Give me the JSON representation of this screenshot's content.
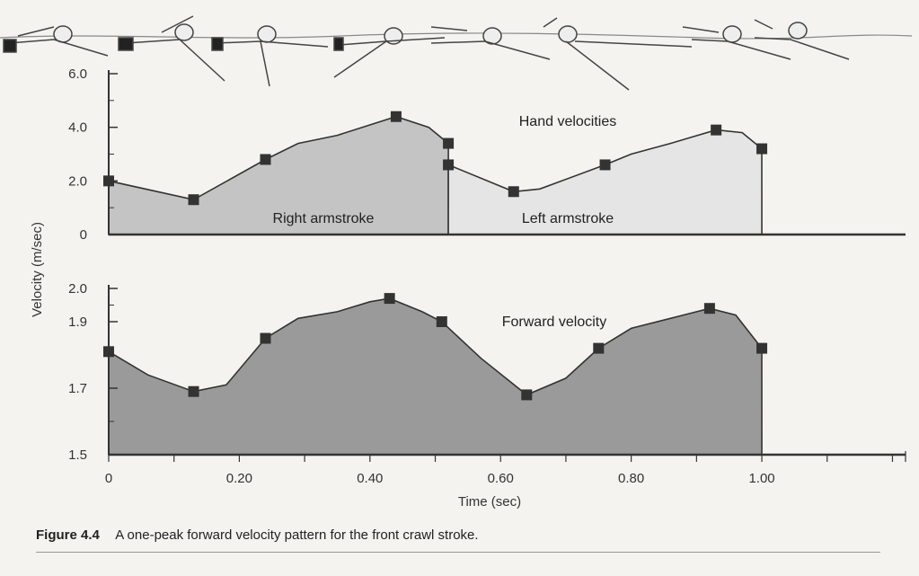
{
  "colors": {
    "right_stroke_fill": "#c4c4c4",
    "left_stroke_fill": "#e5e5e5",
    "forward_fill": "#9a9a9a",
    "marker": "#333333",
    "axis": "#333333"
  },
  "caption": {
    "label": "Figure 4.4",
    "text": "A one-peak forward velocity pattern for the front crawl stroke."
  },
  "chart_data": {
    "type": "area",
    "xlabel": "Time (sec)",
    "ylabel": "Velocity (m/sec)",
    "xlim": [
      0,
      1.22
    ],
    "x_ticks": [
      "0",
      "0.20",
      "0.40",
      "0.60",
      "0.80",
      "1.00"
    ],
    "x_tick_values": [
      0,
      0.2,
      0.4,
      0.6,
      0.8,
      1.0
    ],
    "grid": false,
    "panels": [
      {
        "name": "hand",
        "ylim": [
          0,
          6.0
        ],
        "y_ticks": [
          "0",
          "2.0",
          "4.0",
          "6.0"
        ],
        "y_tick_values": [
          0,
          2.0,
          4.0,
          6.0
        ],
        "label": "Hand velocities",
        "series": [
          {
            "label": "Right armstroke",
            "x": [
              0,
              0.13,
              0.24,
              0.29,
              0.35,
              0.44,
              0.49,
              0.52
            ],
            "y": [
              2.0,
              1.3,
              2.8,
              3.4,
              3.7,
              4.4,
              4.0,
              3.4
            ],
            "markers_x": [
              0,
              0.13,
              0.24,
              0.44,
              0.52
            ],
            "markers_y": [
              2.0,
              1.3,
              2.8,
              4.4,
              3.4
            ]
          },
          {
            "label": "Left armstroke",
            "x": [
              0.52,
              0.62,
              0.66,
              0.76,
              0.8,
              0.86,
              0.93,
              0.97,
              1.0
            ],
            "y": [
              2.6,
              1.6,
              1.7,
              2.6,
              3.0,
              3.4,
              3.9,
              3.8,
              3.2
            ],
            "markers_x": [
              0.52,
              0.62,
              0.76,
              0.93,
              1.0
            ],
            "markers_y": [
              2.6,
              1.6,
              2.6,
              3.9,
              3.2
            ]
          }
        ]
      },
      {
        "name": "forward",
        "ylim": [
          1.5,
          2.0
        ],
        "y_ticks": [
          "1.5",
          "1.7",
          "1.9",
          "2.0"
        ],
        "y_tick_values": [
          1.5,
          1.7,
          1.9,
          2.0
        ],
        "label": "Forward velocity",
        "series": [
          {
            "label": "Forward velocity",
            "x": [
              0,
              0.06,
              0.13,
              0.18,
              0.24,
              0.29,
              0.35,
              0.4,
              0.43,
              0.48,
              0.51,
              0.57,
              0.64,
              0.7,
              0.75,
              0.8,
              0.86,
              0.92,
              0.96,
              1.0
            ],
            "y": [
              1.81,
              1.74,
              1.69,
              1.71,
              1.85,
              1.91,
              1.93,
              1.96,
              1.97,
              1.93,
              1.9,
              1.79,
              1.68,
              1.73,
              1.82,
              1.88,
              1.91,
              1.94,
              1.92,
              1.82
            ],
            "markers_x": [
              0,
              0.13,
              0.24,
              0.43,
              0.51,
              0.64,
              0.75,
              0.92,
              1.0
            ],
            "markers_y": [
              1.81,
              1.69,
              1.85,
              1.97,
              1.9,
              1.68,
              1.82,
              1.94,
              1.82
            ]
          }
        ]
      }
    ]
  }
}
